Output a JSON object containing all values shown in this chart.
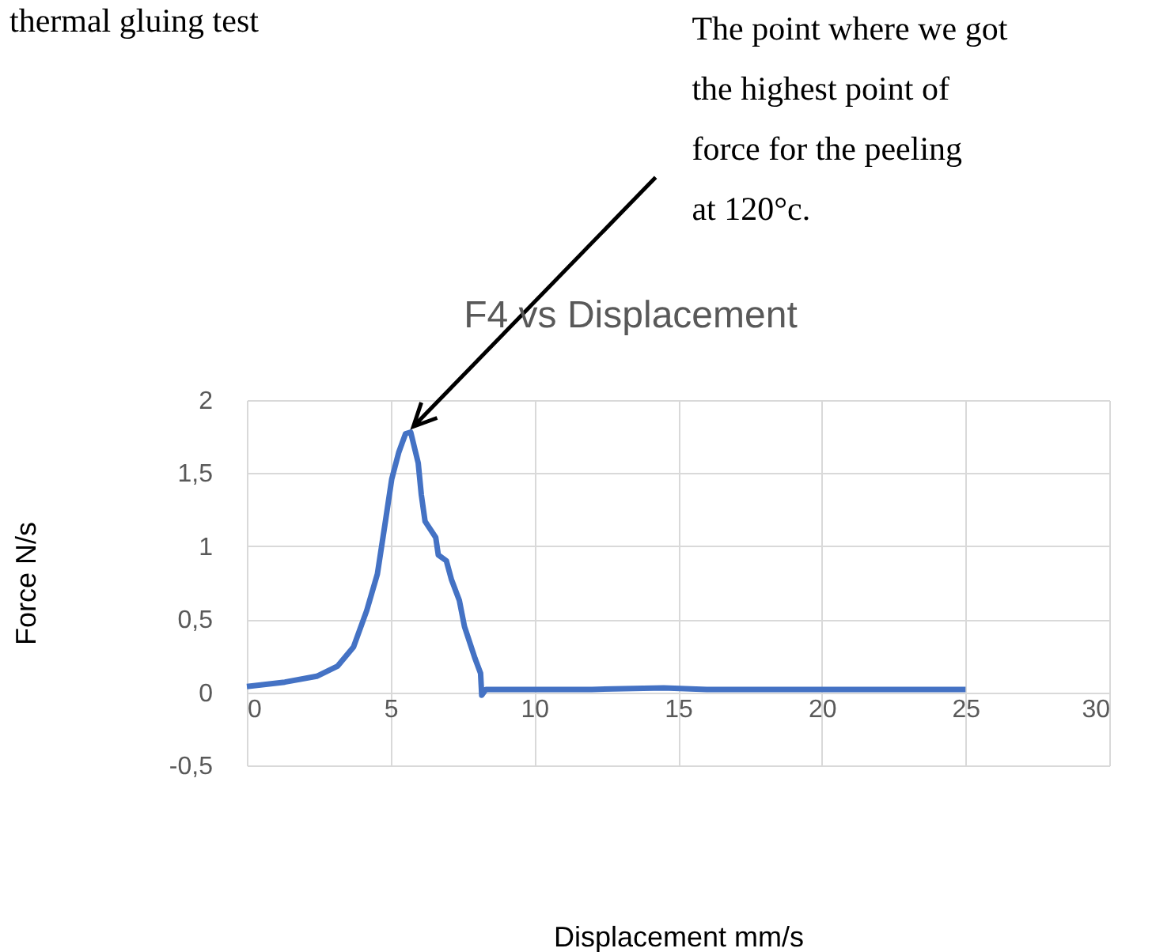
{
  "chart_data": {
    "type": "line",
    "title": "F4 vs Displacement",
    "xlabel": "Displacement mm/s",
    "ylabel": "Force N/s",
    "annotations": [
      {
        "text": "The point where we got the highest point of force for the peeling at 120°c.",
        "x": 5.6,
        "y": 1.78
      },
      "thermal gluing test"
    ],
    "series": [
      {
        "color": "#4472c4",
        "x": [
          0,
          1.32,
          2.43,
          3.16,
          3.71,
          4.17,
          4.54,
          4.82,
          5.04,
          5.28,
          5.52,
          5.7,
          5.96,
          6.07,
          6.2,
          6.57,
          6.66,
          6.94,
          7.12,
          7.39,
          7.57,
          7.94,
          8.13,
          8.17,
          8.31,
          12,
          14.5,
          16,
          20,
          25
        ],
        "values": [
          0.04,
          0.07,
          0.11,
          0.18,
          0.31,
          0.56,
          0.81,
          1.17,
          1.46,
          1.64,
          1.77,
          1.78,
          1.57,
          1.35,
          1.17,
          1.06,
          0.94,
          0.9,
          0.77,
          0.63,
          0.45,
          0.23,
          0.13,
          -0.02,
          0.02,
          0.02,
          0.03,
          0.02,
          0.02,
          0.02
        ]
      }
    ],
    "xlim": [
      0,
      30
    ],
    "xticks": [
      0,
      5,
      10,
      15,
      20,
      25,
      30
    ],
    "ylim": [
      -0.5,
      2
    ],
    "yticks": [
      {
        "value": -0.5,
        "label": "-0,5"
      },
      0,
      {
        "value": 0.5,
        "label": "0,5"
      },
      1,
      {
        "value": 1.5,
        "label": "1,5"
      },
      2
    ],
    "grid": true,
    "marker": "none",
    "line_style": "solid"
  }
}
